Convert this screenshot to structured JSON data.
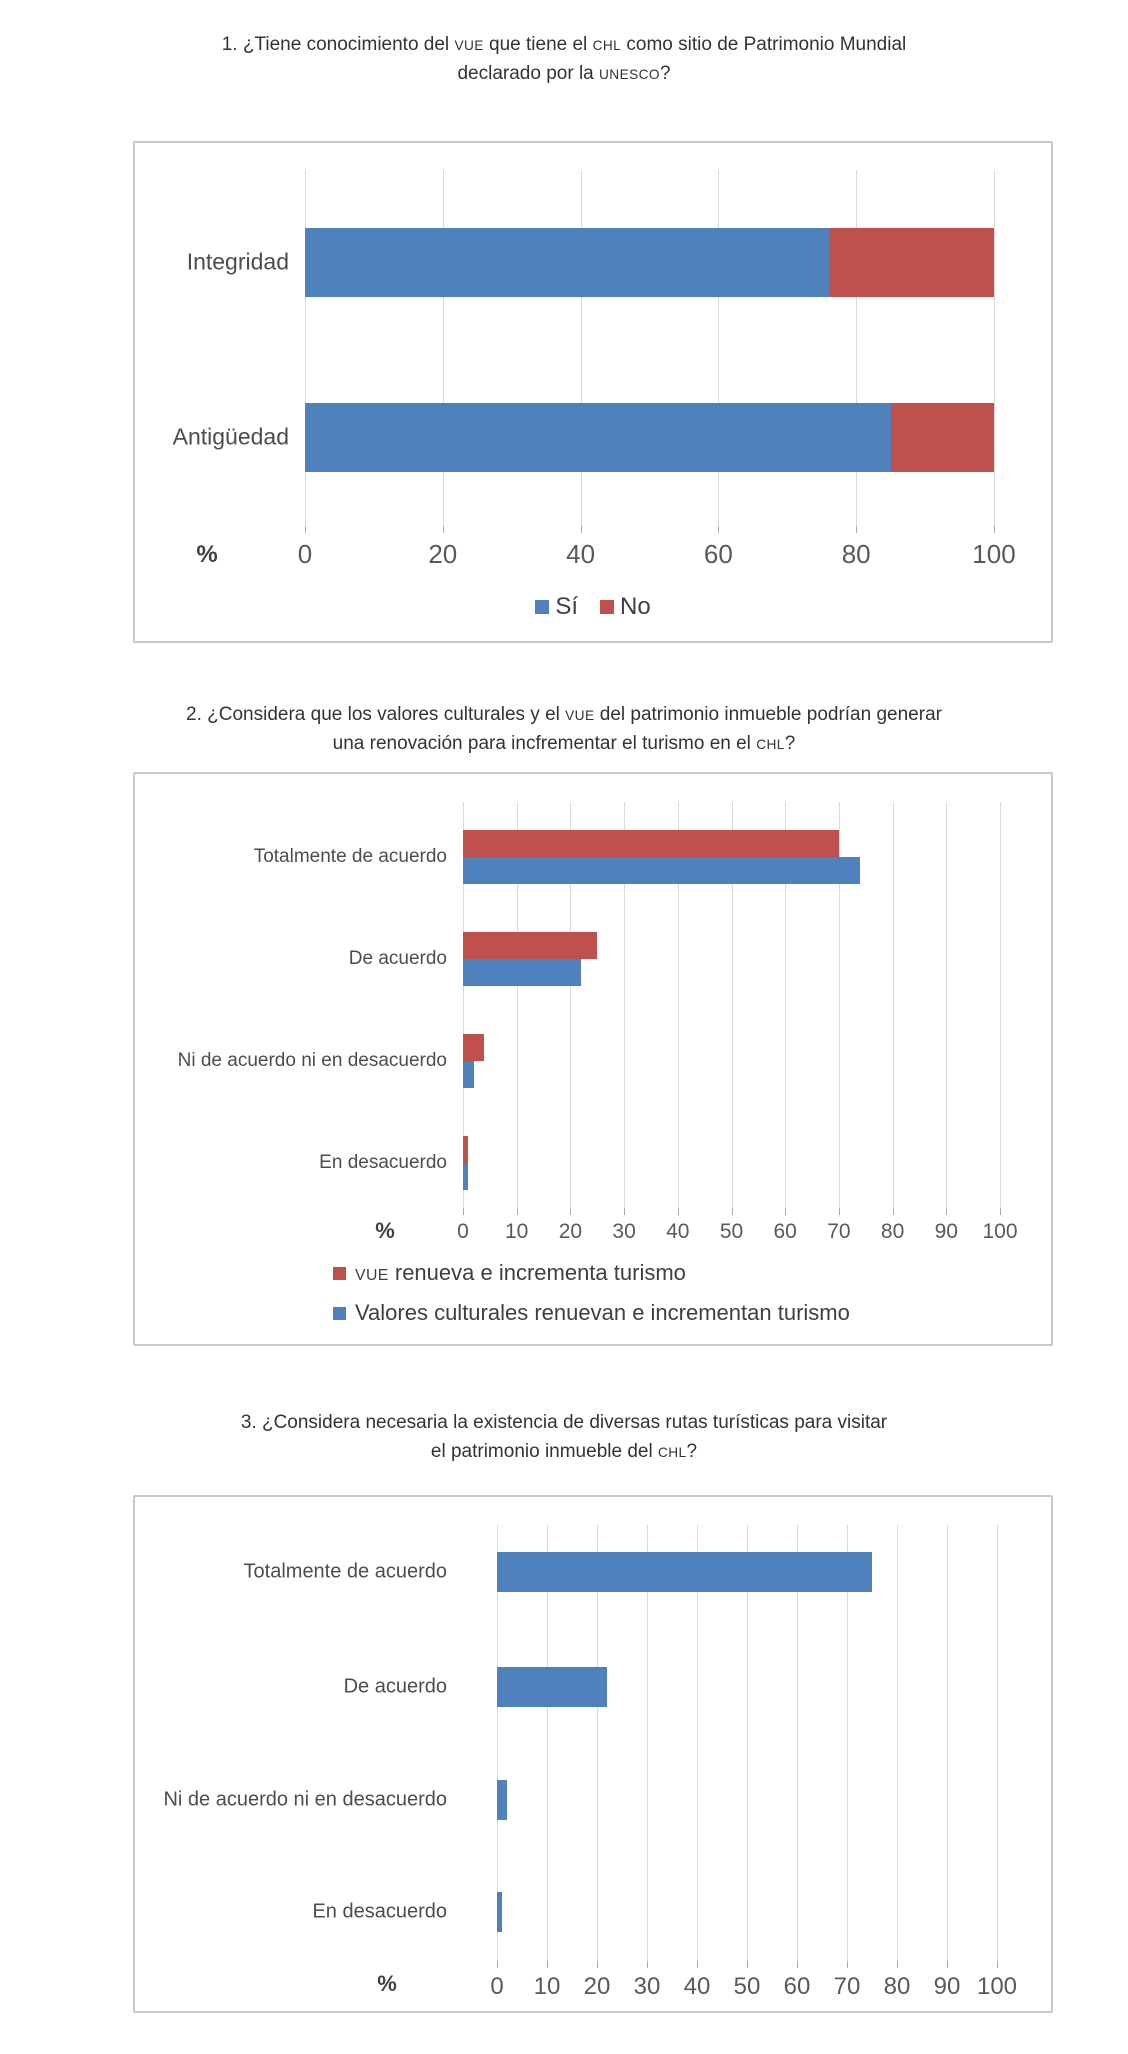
{
  "page": {
    "background": "#ffffff"
  },
  "palette": {
    "blue": "#4f81bd",
    "red": "#c0504d",
    "gridline": "#d9d9d9",
    "tick_stub": "#ababab",
    "panel_border": "#c9c9c9",
    "title_text": "#333333",
    "category_text": "#4d4d4d",
    "axis_text": "#595959"
  },
  "questions": [
    {
      "segments": [
        {
          "t": "1. ¿Tiene conocimiento del "
        },
        {
          "t": "VUE",
          "sc": true
        },
        {
          "t": " que tiene el "
        },
        {
          "t": "CHL",
          "sc": true
        },
        {
          "t": " como sitio de Patrimonio Mundial"
        },
        {
          "br": true
        },
        {
          "t": "declarado por la "
        },
        {
          "t": "UNESCO",
          "sc": true
        },
        {
          "t": "?"
        }
      ]
    },
    {
      "segments": [
        {
          "t": "2. ¿Considera que los valores culturales y el "
        },
        {
          "t": "VUE",
          "sc": true
        },
        {
          "t": " del patrimonio inmueble podrían generar"
        },
        {
          "br": true
        },
        {
          "t": "una renovación para incfrementar el turismo en el "
        },
        {
          "t": "CHL",
          "sc": true
        },
        {
          "t": "?"
        }
      ]
    },
    {
      "segments": [
        {
          "t": "3. ¿Considera necesaria la existencia de diversas rutas turísticas para visitar"
        },
        {
          "br": true
        },
        {
          "t": "el patrimonio inmueble del "
        },
        {
          "t": "CHL",
          "sc": true
        },
        {
          "t": "?"
        }
      ]
    }
  ],
  "chart_data": [
    {
      "type": "bar",
      "orientation": "horizontal",
      "stacked": true,
      "categories": [
        "Integridad",
        "Antigüedad"
      ],
      "series": [
        {
          "name": "Sí",
          "color": "#4f81bd",
          "values": [
            76,
            85
          ]
        },
        {
          "name": "No",
          "color": "#c0504d",
          "values": [
            24,
            15
          ]
        }
      ],
      "xlabel": "%",
      "xlim": [
        0,
        100
      ],
      "ticks": [
        0,
        20,
        40,
        60,
        80,
        100
      ],
      "grid": true,
      "legend_position": "bottom-center"
    },
    {
      "type": "bar",
      "orientation": "horizontal",
      "stacked": false,
      "categories": [
        "Totalmente de acuerdo",
        "De acuerdo",
        "Ni de acuerdo ni en desacuerdo",
        "En desacuerdo"
      ],
      "series": [
        {
          "name": "VUE renueva e incrementa turismo",
          "name_segments": [
            {
              "t": "VUE",
              "sc": true
            },
            {
              "t": " renueva e incrementa turismo"
            }
          ],
          "color": "#c0504d",
          "values": [
            70,
            25,
            4,
            1
          ]
        },
        {
          "name": "Valores culturales renuevan e incrementan turismo",
          "name_segments": [
            {
              "t": "Valores culturales renuevan e incrementan turismo"
            }
          ],
          "color": "#4f81bd",
          "values": [
            74,
            22,
            2,
            1
          ]
        }
      ],
      "xlabel": "%",
      "xlim": [
        0,
        100
      ],
      "ticks": [
        0,
        10,
        20,
        30,
        40,
        50,
        60,
        70,
        80,
        90,
        100
      ],
      "grid": true,
      "legend_position": "bottom-left"
    },
    {
      "type": "bar",
      "orientation": "horizontal",
      "stacked": false,
      "categories": [
        "Totalmente de acuerdo",
        "De acuerdo",
        "Ni de acuerdo ni en desacuerdo",
        "En desacuerdo"
      ],
      "series": [
        {
          "name": "",
          "color": "#4f81bd",
          "values": [
            75,
            22,
            2,
            1
          ]
        }
      ],
      "xlabel": "%",
      "xlim": [
        0,
        100
      ],
      "ticks": [
        0,
        10,
        20,
        30,
        40,
        50,
        60,
        70,
        80,
        90,
        100
      ],
      "grid": true,
      "legend_position": "none"
    }
  ]
}
